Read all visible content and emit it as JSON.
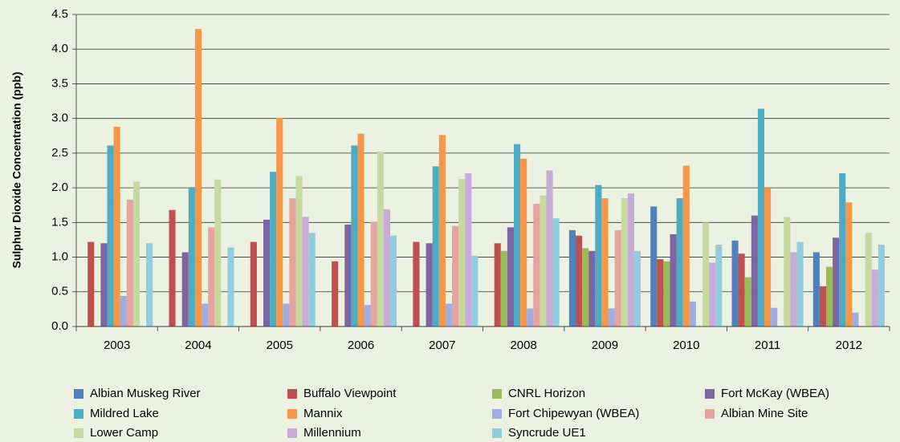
{
  "chart_data": {
    "type": "bar",
    "y_label": "Sulphur Dioxide Concentration (ppb)",
    "categories": [
      "2003",
      "2004",
      "2005",
      "2006",
      "2007",
      "2008",
      "2009",
      "2010",
      "2011",
      "2012"
    ],
    "ylim": [
      0,
      4.5
    ],
    "yticks": [
      {
        "value": 0,
        "label": "0.0"
      },
      0.5,
      {
        "value": 1,
        "label": "1.0"
      },
      1.5,
      {
        "value": 2,
        "label": "2.0"
      },
      2.5,
      {
        "value": 3,
        "label": "3.0"
      },
      3.5,
      {
        "value": 4,
        "label": "4.0"
      },
      4.5
    ],
    "grid": true,
    "legend": "bottom",
    "series": [
      {
        "name": "Albian Muskeg River",
        "color": "#4f81bd",
        "values": [
          null,
          null,
          null,
          null,
          null,
          null,
          1.39,
          1.73,
          1.24,
          1.07
        ]
      },
      {
        "name": "Buffalo Viewpoint",
        "color": "#c0504d",
        "values": [
          1.22,
          1.68,
          1.22,
          0.94,
          1.22,
          1.2,
          1.31,
          0.97,
          1.05,
          0.58
        ]
      },
      {
        "name": "CNRL Horizon",
        "color": "#9bbb59",
        "values": [
          null,
          null,
          null,
          null,
          null,
          1.09,
          1.13,
          0.94,
          0.71,
          0.86
        ]
      },
      {
        "name": "Fort McKay (WBEA)",
        "color": "#8064a2",
        "values": [
          1.2,
          1.07,
          1.54,
          1.47,
          1.2,
          1.43,
          1.09,
          1.33,
          1.6,
          1.28
        ]
      },
      {
        "name": "Mildred Lake",
        "color": "#4bacc6",
        "values": [
          2.61,
          2.01,
          2.23,
          2.61,
          2.31,
          2.63,
          2.04,
          1.85,
          3.14,
          2.21
        ]
      },
      {
        "name": "Mannix",
        "color": "#f79646",
        "values": [
          2.88,
          4.29,
          3.01,
          2.78,
          2.76,
          2.42,
          1.85,
          2.32,
          2.0,
          1.79
        ]
      },
      {
        "name": "Fort Chipewyan (WBEA)",
        "color": "#9daee0",
        "values": [
          0.44,
          0.33,
          0.33,
          0.31,
          0.33,
          0.26,
          0.26,
          0.36,
          0.27,
          0.2
        ]
      },
      {
        "name": "Albian Mine Site",
        "color": "#e6a3a0",
        "values": [
          1.83,
          1.43,
          1.85,
          1.51,
          1.45,
          1.77,
          1.39,
          null,
          null,
          null
        ]
      },
      {
        "name": "Lower Camp",
        "color": "#c6d9a0",
        "values": [
          2.09,
          2.12,
          2.17,
          2.52,
          2.13,
          1.89,
          1.85,
          1.5,
          1.58,
          1.35
        ]
      },
      {
        "name": "Millennium",
        "color": "#c8abd8",
        "values": [
          null,
          null,
          1.58,
          1.69,
          2.21,
          2.25,
          1.92,
          0.92,
          1.07,
          0.82
        ]
      },
      {
        "name": "Syncrude UE1",
        "color": "#93cddd",
        "values": [
          1.2,
          1.14,
          1.35,
          1.31,
          1.02,
          1.56,
          1.09,
          1.18,
          1.22,
          1.18
        ]
      }
    ]
  }
}
